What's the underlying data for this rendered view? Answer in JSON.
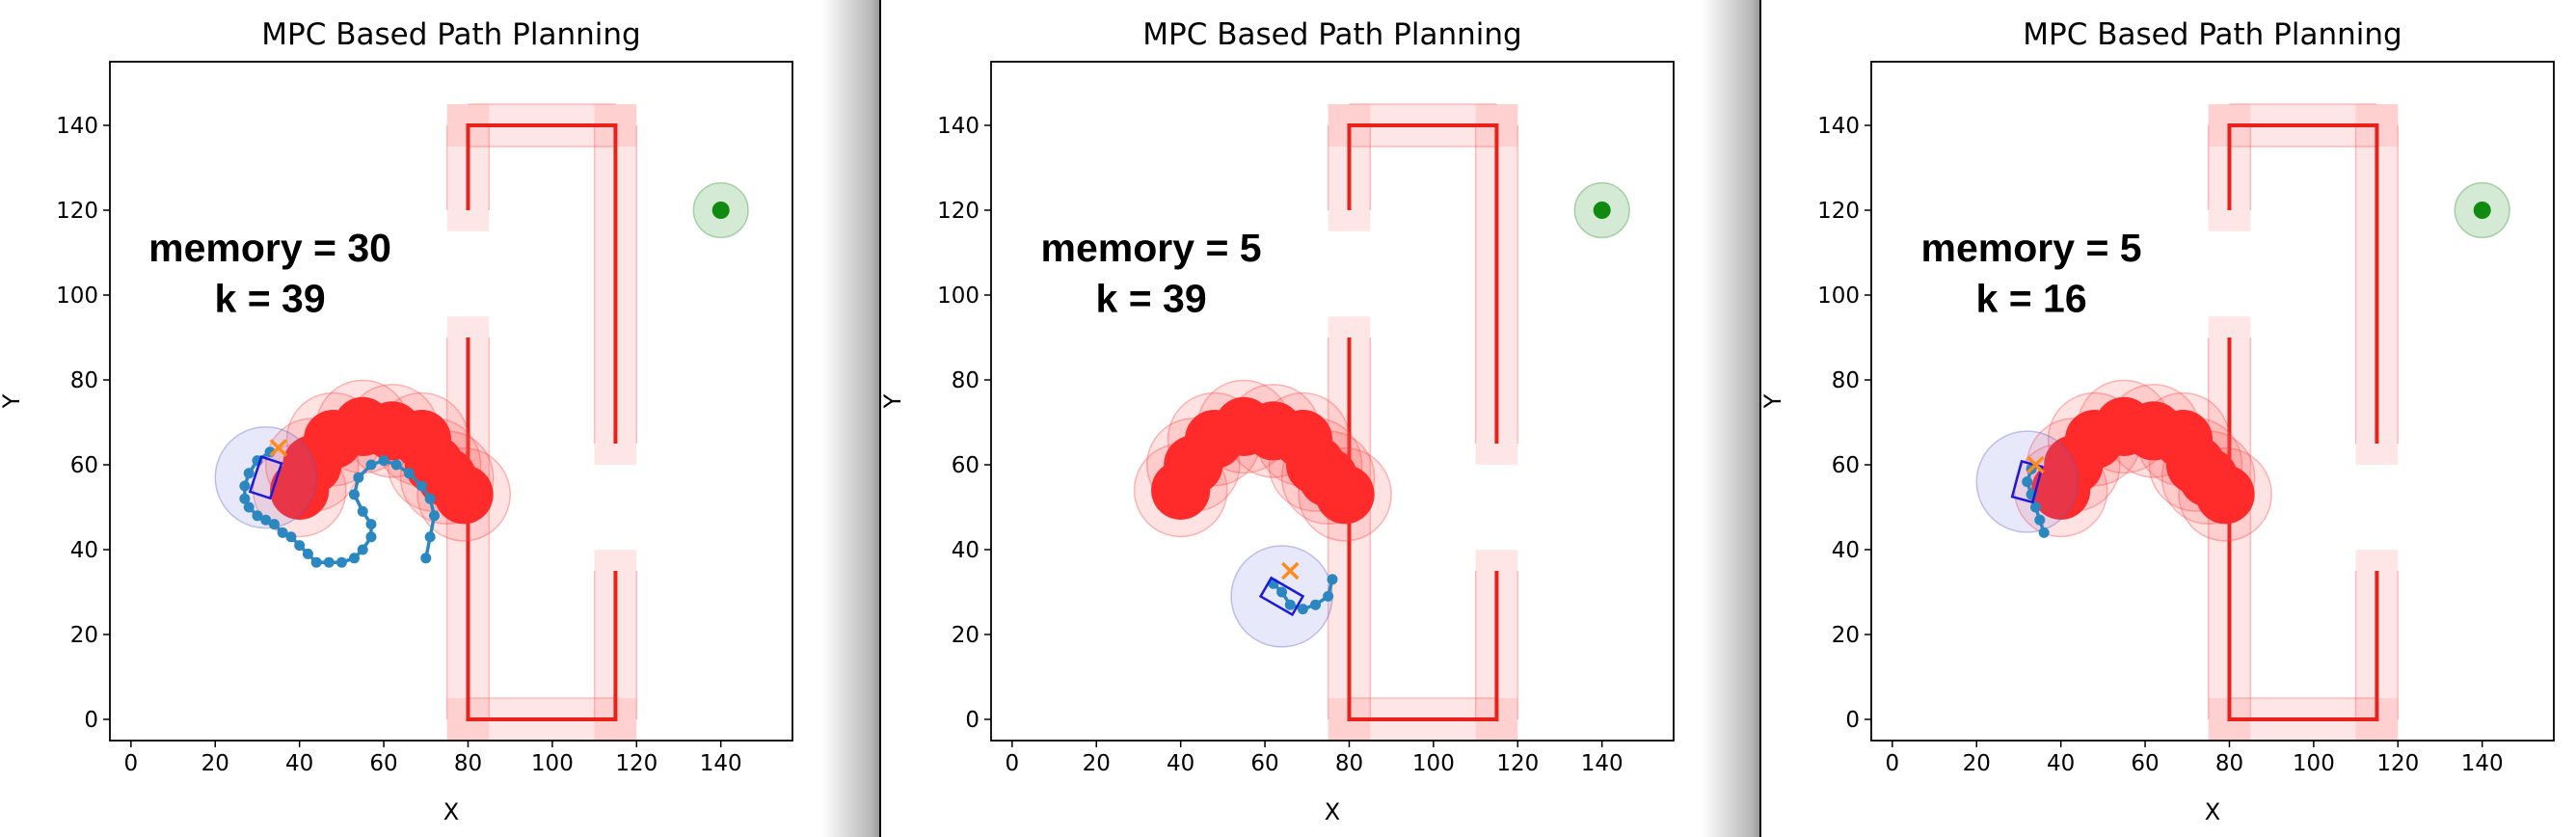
{
  "chart_data": [
    {
      "type": "scatter",
      "title": "MPC Based Path Planning",
      "xlabel": "X",
      "ylabel": "Y",
      "xlim": [
        -5,
        157
      ],
      "ylim": [
        -5,
        155
      ],
      "xticks": [
        0,
        20,
        40,
        60,
        80,
        100,
        120,
        140
      ],
      "yticks": [
        0,
        20,
        40,
        60,
        80,
        100,
        120,
        140
      ],
      "annotation": [
        "memory = 30",
        "k = 39"
      ],
      "walls": [
        [
          [
            80,
            120
          ],
          [
            80,
            140
          ],
          [
            115,
            140
          ],
          [
            115,
            65
          ]
        ],
        [
          [
            80,
            90
          ],
          [
            80,
            0
          ],
          [
            115,
            0
          ],
          [
            115,
            35
          ]
        ]
      ],
      "goal": {
        "x": 140,
        "y": 120
      },
      "obstacles": [
        [
          40,
          54
        ],
        [
          43,
          60
        ],
        [
          48,
          66
        ],
        [
          55,
          69
        ],
        [
          62,
          68
        ],
        [
          69,
          66
        ],
        [
          72,
          60
        ],
        [
          75,
          57
        ],
        [
          79,
          53
        ]
      ],
      "robot": {
        "x": 32,
        "y": 57,
        "heading": 72
      },
      "predicted": {
        "x": 35,
        "y": 64
      },
      "trajectory": [
        [
          70,
          38
        ],
        [
          71,
          43
        ],
        [
          72,
          48
        ],
        [
          71,
          52
        ],
        [
          69,
          55
        ],
        [
          66,
          58
        ],
        [
          63,
          60
        ],
        [
          60,
          61
        ],
        [
          57,
          60
        ],
        [
          54,
          57
        ],
        [
          53,
          53
        ],
        [
          55,
          49
        ],
        [
          57,
          46
        ],
        [
          57,
          43
        ],
        [
          55,
          40
        ],
        [
          53,
          38
        ],
        [
          50,
          37
        ],
        [
          47,
          37
        ],
        [
          44,
          37
        ],
        [
          42,
          39
        ],
        [
          40,
          41
        ],
        [
          38,
          43
        ],
        [
          36,
          44
        ],
        [
          34,
          46
        ],
        [
          32,
          47
        ],
        [
          30,
          48
        ],
        [
          28,
          50
        ],
        [
          27,
          52
        ],
        [
          27,
          55
        ],
        [
          28,
          58
        ],
        [
          30,
          61
        ],
        [
          33,
          63
        ]
      ]
    },
    {
      "type": "scatter",
      "title": "MPC Based Path Planning",
      "xlabel": "X",
      "ylabel": "Y",
      "xlim": [
        -5,
        157
      ],
      "ylim": [
        -5,
        155
      ],
      "xticks": [
        0,
        20,
        40,
        60,
        80,
        100,
        120,
        140
      ],
      "yticks": [
        0,
        20,
        40,
        60,
        80,
        100,
        120,
        140
      ],
      "annotation": [
        "memory = 5",
        "k = 39"
      ],
      "walls": [
        [
          [
            80,
            120
          ],
          [
            80,
            140
          ],
          [
            115,
            140
          ],
          [
            115,
            65
          ]
        ],
        [
          [
            80,
            90
          ],
          [
            80,
            0
          ],
          [
            115,
            0
          ],
          [
            115,
            35
          ]
        ]
      ],
      "goal": {
        "x": 140,
        "y": 120
      },
      "obstacles": [
        [
          40,
          54
        ],
        [
          43,
          60
        ],
        [
          48,
          66
        ],
        [
          55,
          69
        ],
        [
          62,
          68
        ],
        [
          69,
          66
        ],
        [
          72,
          60
        ],
        [
          75,
          57
        ],
        [
          79,
          53
        ]
      ],
      "robot": {
        "x": 64,
        "y": 29,
        "heading": 150
      },
      "predicted": {
        "x": 66,
        "y": 35
      },
      "trajectory": [
        [
          76,
          33
        ],
        [
          75,
          29
        ],
        [
          72,
          27
        ],
        [
          69,
          26
        ],
        [
          66,
          27
        ],
        [
          64,
          30
        ],
        [
          62,
          32
        ]
      ]
    },
    {
      "type": "scatter",
      "title": "MPC Based Path Planning",
      "xlabel": "X",
      "ylabel": "Y",
      "xlim": [
        -5,
        157
      ],
      "ylim": [
        -5,
        155
      ],
      "xticks": [
        0,
        20,
        40,
        60,
        80,
        100,
        120,
        140
      ],
      "yticks": [
        0,
        20,
        40,
        60,
        80,
        100,
        120,
        140
      ],
      "annotation": [
        "memory = 5",
        "k = 16"
      ],
      "walls": [
        [
          [
            80,
            120
          ],
          [
            80,
            140
          ],
          [
            115,
            140
          ],
          [
            115,
            65
          ]
        ],
        [
          [
            80,
            90
          ],
          [
            80,
            0
          ],
          [
            115,
            0
          ],
          [
            115,
            35
          ]
        ]
      ],
      "goal": {
        "x": 140,
        "y": 120
      },
      "obstacles": [
        [
          40,
          54
        ],
        [
          43,
          60
        ],
        [
          48,
          66
        ],
        [
          55,
          69
        ],
        [
          62,
          68
        ],
        [
          69,
          66
        ],
        [
          72,
          60
        ],
        [
          75,
          57
        ],
        [
          79,
          53
        ]
      ],
      "robot": {
        "x": 32,
        "y": 56,
        "heading": 75
      },
      "predicted": {
        "x": 34,
        "y": 60
      },
      "trajectory": [
        [
          36,
          44
        ],
        [
          35,
          47
        ],
        [
          34,
          50
        ],
        [
          33,
          53
        ],
        [
          32,
          56
        ],
        [
          33,
          59
        ]
      ]
    }
  ]
}
